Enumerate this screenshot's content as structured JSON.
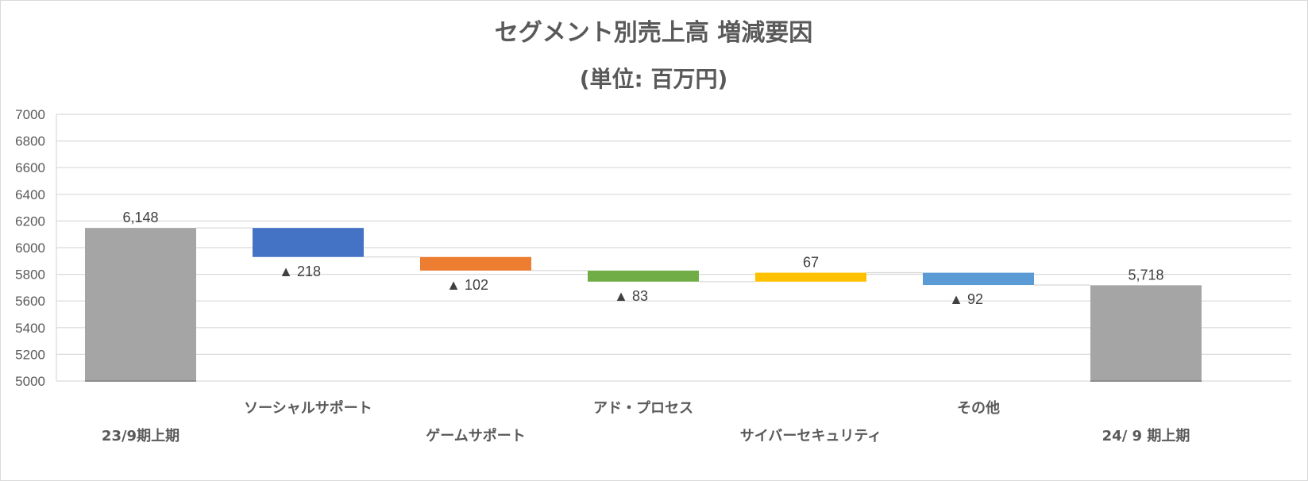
{
  "chart_data": {
    "type": "waterfall",
    "title": "セグメント別売上高 増減要因",
    "subtitle": "(単位: 百万円)",
    "ylim": [
      5000,
      7000
    ],
    "ytick_step": 200,
    "grid": true,
    "negative_marker": "▲",
    "colors": {
      "total": "#a5a5a5",
      "connector": "#d9d9d9",
      "grid": "#d9d9d9",
      "text": "#595959"
    },
    "steps": [
      {
        "category": "23/9期上期",
        "kind": "total",
        "value": 6148,
        "label": "6,148",
        "color": "#a5a5a5",
        "label_row": 2
      },
      {
        "category": "ソーシャルサポート",
        "kind": "delta",
        "value": -218,
        "label": "218",
        "color": "#4472c4",
        "label_row": 1
      },
      {
        "category": "ゲームサポート",
        "kind": "delta",
        "value": -102,
        "label": "102",
        "color": "#ed7d31",
        "label_row": 2
      },
      {
        "category": "アド・プロセス",
        "kind": "delta",
        "value": -83,
        "label": "83",
        "color": "#70ad47",
        "label_row": 1
      },
      {
        "category": "サイバーセキュリティ",
        "kind": "delta",
        "value": 67,
        "label": "67",
        "color": "#ffc000",
        "label_row": 2
      },
      {
        "category": "その他",
        "kind": "delta",
        "value": -92,
        "label": "92",
        "color": "#5b9bd5",
        "label_row": 1
      },
      {
        "category": "24/ 9 期上期",
        "kind": "total",
        "value": 5718,
        "label": "5,718",
        "color": "#a5a5a5",
        "label_row": 2
      }
    ]
  }
}
